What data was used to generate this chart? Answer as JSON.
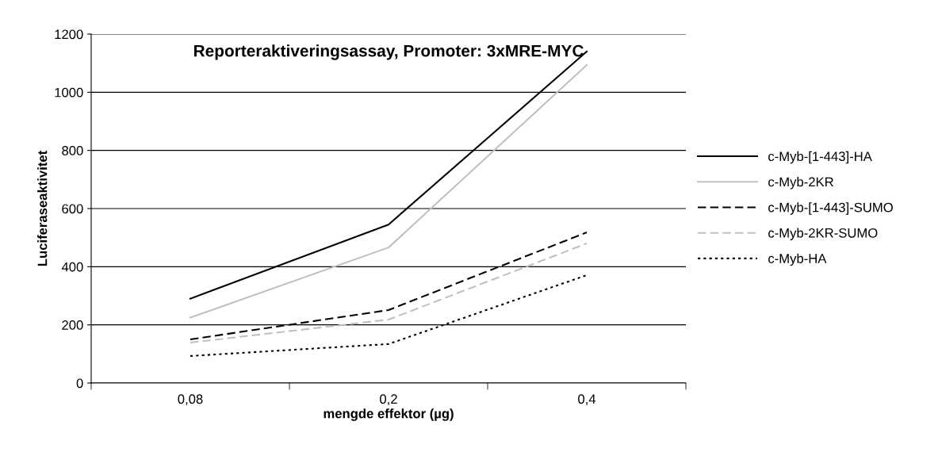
{
  "chart_data": {
    "type": "line",
    "title": "Reporteraktiveringsassay, Promoter: 3xMRE-MYC",
    "xlabel": "mengde effektor (µg)",
    "ylabel": "Luciferaseaktivitet",
    "categories": [
      "0,08",
      "0,2",
      "0,4"
    ],
    "series": [
      {
        "name": "c-Myb-[1-443]-HA",
        "color": "#000000",
        "line_style": "solid",
        "values": [
          290,
          545,
          1140
        ]
      },
      {
        "name": "c-Myb-2KR",
        "color": "#c0c0c0",
        "line_style": "solid",
        "values": [
          225,
          466,
          1094
        ]
      },
      {
        "name": "c-Myb-[1-443]-SUMO",
        "color": "#000000",
        "line_style": "dashed",
        "values": [
          150,
          251,
          518
        ]
      },
      {
        "name": "c-Myb-2KR-SUMO",
        "color": "#c0c0c0",
        "line_style": "dashed",
        "values": [
          139,
          218,
          480
        ]
      },
      {
        "name": "c-Myb-HA",
        "color": "#000000",
        "line_style": "dotted",
        "values": [
          93,
          134,
          371
        ]
      }
    ],
    "ylim": [
      0,
      1200
    ],
    "yticks": [
      0,
      200,
      400,
      600,
      800,
      1000,
      1200
    ],
    "grid": "y",
    "legend": "right",
    "marker": "none"
  }
}
